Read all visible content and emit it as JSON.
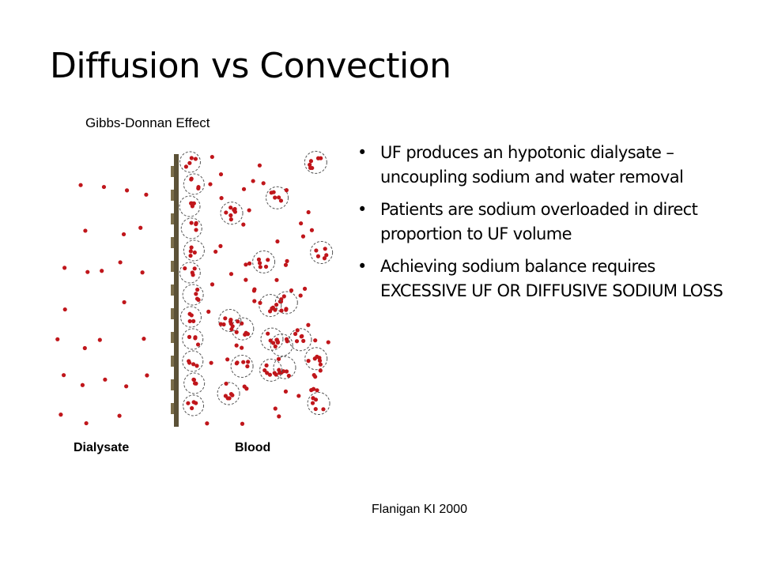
{
  "title": "Diffusion vs Convection",
  "figure": {
    "caption": "Gibbs-Donnan Effect",
    "left_label": "Dialysate",
    "right_label": "Blood"
  },
  "bullets": [
    "UF produces an hypotonic dialysate – uncoupling sodium and water removal",
    "Patients are sodium overloaded in direct proportion to UF volume",
    "Achieving sodium balance requires EXCESSIVE UF OR DIFFUSIVE SODIUM LOSS"
  ],
  "citation": "Flanigan KI 2000"
}
